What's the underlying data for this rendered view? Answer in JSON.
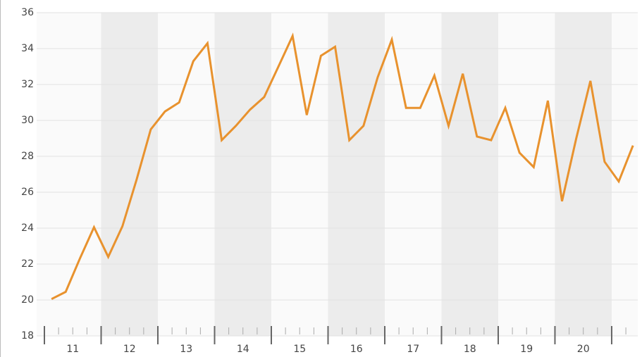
{
  "chart_data": {
    "type": "line",
    "x": [
      11.125,
      11.375,
      11.625,
      11.875,
      12.125,
      12.375,
      12.625,
      12.875,
      13.125,
      13.375,
      13.625,
      13.875,
      14.125,
      14.375,
      14.625,
      14.875,
      15.125,
      15.375,
      15.625,
      15.875,
      16.125,
      16.375,
      16.625,
      16.875,
      17.125,
      17.375,
      17.625,
      17.875,
      18.125,
      18.375,
      18.625,
      18.875,
      19.125,
      19.375,
      19.625,
      19.875,
      20.125,
      20.375,
      20.625,
      20.875,
      21.125,
      21.375
    ],
    "series": [
      {
        "color": "#e8922e",
        "values": [
          20.05,
          20.45,
          22.3,
          24.05,
          22.4,
          24.1,
          26.7,
          29.5,
          30.5,
          31.0,
          33.3,
          34.3,
          28.9,
          29.7,
          30.6,
          31.3,
          33.0,
          34.7,
          30.3,
          33.6,
          34.1,
          28.9,
          29.7,
          32.4,
          34.5,
          30.7,
          30.7,
          32.5,
          29.7,
          32.6,
          29.1,
          28.9,
          30.7,
          28.2,
          27.4,
          31.1,
          25.5,
          29.0,
          32.2,
          27.7,
          26.6,
          28.6
        ]
      }
    ],
    "categories": [
      "11",
      "12",
      "13",
      "14",
      "15",
      "16",
      "17",
      "18",
      "19",
      "20"
    ],
    "xlim": [
      11,
      21.46
    ],
    "xticks": [
      11,
      12,
      13,
      14,
      15,
      16,
      17,
      18,
      19,
      20,
      21
    ],
    "ylim": [
      18,
      36
    ],
    "yticks": [
      18,
      20,
      22,
      24,
      26,
      28,
      30,
      32,
      34,
      36
    ],
    "grid": true
  }
}
